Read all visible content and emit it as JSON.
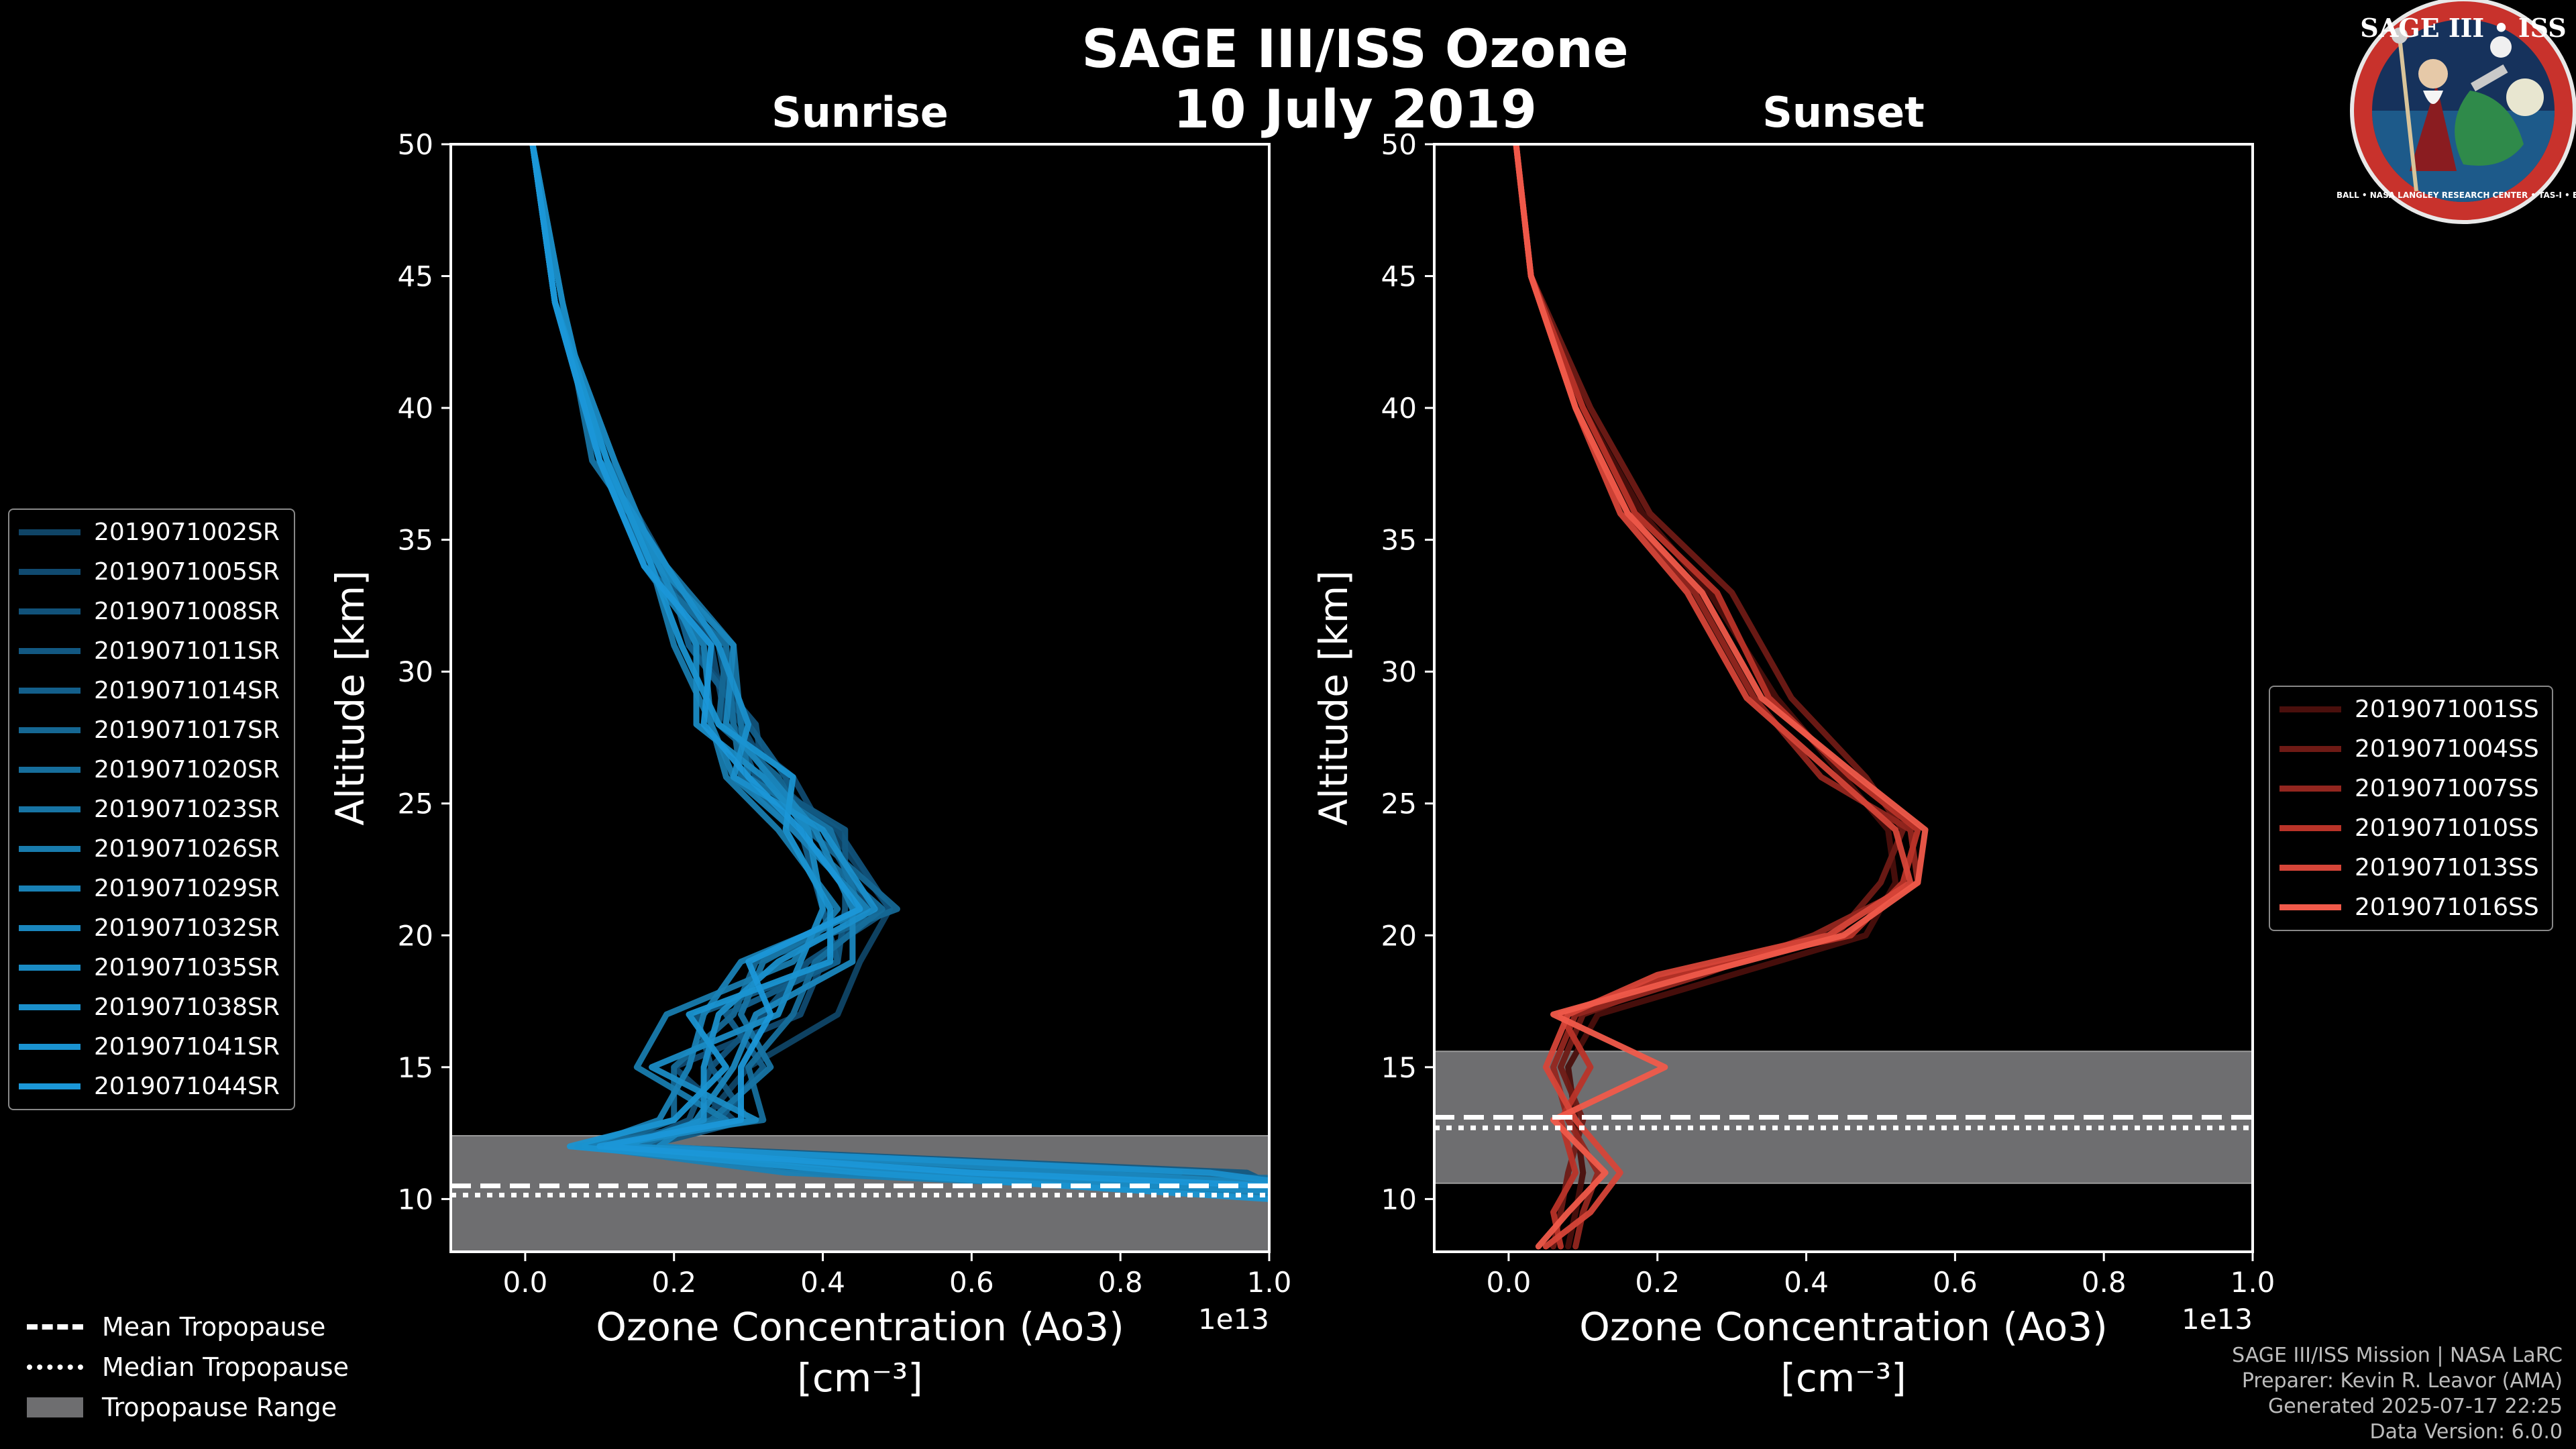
{
  "title": {
    "line1": "SAGE III/ISS Ozone",
    "line2": "10 July 2019"
  },
  "logo": {
    "text": "SAGE III • ISS",
    "ring_text": "BALL • NASA LANGLEY RESEARCH CENTER • TAS-I • ESA"
  },
  "footer": {
    "line1": "SAGE III/ISS Mission | NASA LaRC",
    "line2": "Preparer: Kevin R. Leavor (AMA)",
    "line3": "Generated 2025-07-17 22:25",
    "line4": "Data Version: 6.0.0"
  },
  "bottom_legend": {
    "mean": "Mean Tropopause",
    "median": "Median Tropopause",
    "range": "Tropopause Range"
  },
  "colors": {
    "sunrise": "#1a8fd0",
    "sunset": "#f05a4a",
    "range": "#6e6e70"
  },
  "chart_data": [
    {
      "type": "line",
      "title": "Sunrise",
      "xlabel": "Ozone Concentration (Ao3)",
      "xunit": "[cm⁻³]",
      "x_offset_label": "1e13",
      "ylabel": "Altitude [km]",
      "xlim": [
        -0.1,
        1.0
      ],
      "ylim": [
        8,
        50
      ],
      "xticks": [
        0.0,
        0.2,
        0.4,
        0.6,
        0.8,
        1.0
      ],
      "xtick_labels": [
        "0.0",
        "0.2",
        "0.4",
        "0.6",
        "0.8",
        "1.0"
      ],
      "yticks": [
        10,
        15,
        20,
        25,
        30,
        35,
        40,
        45,
        50
      ],
      "tropopause_mean": 10.5,
      "tropopause_median": 10.15,
      "tropopause_range": [
        8,
        12.4
      ],
      "series": [
        {
          "name": "2019071002SR",
          "color": "#0f4466",
          "x": [
            0.01,
            0.04,
            0.1,
            0.18,
            0.23,
            0.29,
            0.33,
            0.41,
            0.49,
            0.45,
            0.42,
            0.3,
            0.24,
            0.12,
            0.48,
            1.0
          ],
          "y": [
            50,
            44,
            38,
            34,
            31,
            28,
            26,
            24,
            21,
            19,
            17,
            15,
            13,
            12,
            11,
            10.5
          ]
        },
        {
          "name": "2019071005SR",
          "color": "#104a70",
          "x": [
            0.01,
            0.04,
            0.1,
            0.17,
            0.25,
            0.27,
            0.36,
            0.4,
            0.46,
            0.4,
            0.37,
            0.2,
            0.28,
            0.1,
            0.61,
            1.0
          ],
          "y": [
            50,
            44,
            38,
            34,
            31,
            28,
            26,
            24,
            21,
            19,
            17,
            15,
            13,
            12,
            11,
            10.2
          ]
        },
        {
          "name": "2019071008SR",
          "color": "#11527a",
          "x": [
            0.01,
            0.04,
            0.11,
            0.19,
            0.22,
            0.31,
            0.32,
            0.42,
            0.49,
            0.38,
            0.32,
            0.25,
            0.22,
            0.14,
            0.83,
            0.9
          ],
          "y": [
            50,
            44,
            38,
            34,
            31,
            28,
            26,
            24,
            21,
            19,
            17,
            15,
            13,
            12,
            11,
            10.7
          ]
        },
        {
          "name": "2019071011SR",
          "color": "#125882",
          "x": [
            0.01,
            0.04,
            0.1,
            0.18,
            0.26,
            0.28,
            0.31,
            0.43,
            0.43,
            0.42,
            0.23,
            0.25,
            0.3,
            0.16,
            0.97,
            1.0
          ],
          "y": [
            50,
            44,
            38,
            34,
            31,
            28,
            26,
            24,
            21,
            19,
            17,
            15,
            13,
            12,
            11,
            10.6
          ]
        },
        {
          "name": "2019071014SR",
          "color": "#135f8b",
          "x": [
            0.01,
            0.05,
            0.1,
            0.19,
            0.22,
            0.3,
            0.35,
            0.37,
            0.4,
            0.42,
            0.27,
            0.32,
            0.26,
            0.09,
            0.7,
            1.0
          ],
          "y": [
            50,
            44,
            38,
            34,
            31,
            28,
            26,
            24,
            21,
            19,
            17,
            15,
            13,
            12,
            11,
            10.3
          ]
        },
        {
          "name": "2019071017SR",
          "color": "#156793",
          "x": [
            0.01,
            0.04,
            0.12,
            0.16,
            0.27,
            0.26,
            0.34,
            0.38,
            0.5,
            0.31,
            0.28,
            0.2,
            0.2,
            0.1,
            0.4,
            1.0
          ],
          "y": [
            50,
            44,
            38,
            34,
            31,
            28,
            26,
            24,
            21,
            19,
            17,
            15,
            13,
            12,
            11,
            10.4
          ]
        },
        {
          "name": "2019071020SR",
          "color": "#166e9c",
          "x": [
            0.01,
            0.04,
            0.1,
            0.16,
            0.27,
            0.28,
            0.29,
            0.36,
            0.48,
            0.39,
            0.36,
            0.3,
            0.32,
            0.07,
            0.55,
            1.0
          ],
          "y": [
            50,
            44,
            38,
            34,
            31,
            28,
            26,
            24,
            21,
            19,
            17,
            15,
            13,
            12,
            11,
            10.8
          ]
        },
        {
          "name": "2019071023SR",
          "color": "#1774a4",
          "x": [
            0.01,
            0.05,
            0.09,
            0.19,
            0.28,
            0.29,
            0.3,
            0.41,
            0.45,
            0.32,
            0.29,
            0.33,
            0.25,
            0.15,
            0.66,
            1.0
          ],
          "y": [
            50,
            44,
            38,
            34,
            31,
            28,
            26,
            24,
            21,
            19,
            17,
            15,
            13,
            12,
            11,
            10.1
          ]
        },
        {
          "name": "2019071026SR",
          "color": "#187bad",
          "x": [
            0.01,
            0.04,
            0.11,
            0.17,
            0.2,
            0.25,
            0.27,
            0.34,
            0.42,
            0.36,
            0.19,
            0.15,
            0.27,
            0.12,
            0.88,
            0.8
          ],
          "y": [
            50,
            44,
            38,
            34,
            31,
            28,
            26,
            24,
            21,
            19,
            17,
            15,
            13,
            12,
            11,
            10.9
          ]
        },
        {
          "name": "2019071029SR",
          "color": "#1981b5",
          "x": [
            0.01,
            0.04,
            0.1,
            0.16,
            0.24,
            0.25,
            0.28,
            0.36,
            0.46,
            0.29,
            0.24,
            0.22,
            0.18,
            0.08,
            0.35,
            1.0
          ],
          "y": [
            50,
            44,
            38,
            34,
            31,
            28,
            26,
            24,
            21,
            19,
            17,
            15,
            13,
            12,
            11,
            10.2
          ]
        },
        {
          "name": "2019071032SR",
          "color": "#1a86bd",
          "x": [
            0.01,
            0.04,
            0.12,
            0.18,
            0.28,
            0.27,
            0.33,
            0.39,
            0.44,
            0.44,
            0.31,
            0.28,
            0.23,
            0.18,
            0.75,
            1.0
          ],
          "y": [
            50,
            44,
            38,
            34,
            31,
            28,
            26,
            24,
            21,
            19,
            17,
            15,
            13,
            12,
            11,
            10.6
          ]
        },
        {
          "name": "2019071035SR",
          "color": "#1a8bc4",
          "x": [
            0.01,
            0.05,
            0.1,
            0.18,
            0.23,
            0.23,
            0.32,
            0.38,
            0.4,
            0.37,
            0.34,
            0.17,
            0.31,
            0.11,
            0.52,
            1.0
          ],
          "y": [
            50,
            44,
            38,
            34,
            31,
            28,
            26,
            24,
            21,
            19,
            17,
            15,
            13,
            12,
            11,
            10.3
          ]
        },
        {
          "name": "2019071038SR",
          "color": "#1a8fcb",
          "x": [
            0.01,
            0.04,
            0.1,
            0.19,
            0.26,
            0.3,
            0.28,
            0.4,
            0.47,
            0.34,
            0.26,
            0.24,
            0.24,
            0.13,
            0.92,
            1.0
          ],
          "y": [
            50,
            44,
            38,
            34,
            31,
            28,
            26,
            24,
            21,
            19,
            17,
            15,
            13,
            12,
            11,
            10.7
          ]
        },
        {
          "name": "2019071041SR",
          "color": "#1a93d1",
          "x": [
            0.01,
            0.04,
            0.11,
            0.17,
            0.21,
            0.26,
            0.36,
            0.35,
            0.41,
            0.41,
            0.22,
            0.27,
            0.2,
            0.06,
            0.45,
            1.0
          ],
          "y": [
            50,
            44,
            38,
            34,
            31,
            28,
            26,
            24,
            21,
            19,
            17,
            15,
            13,
            12,
            11,
            10.0
          ]
        },
        {
          "name": "2019071044SR",
          "color": "#1b97d8",
          "x": [
            0.01,
            0.04,
            0.1,
            0.16,
            0.25,
            0.24,
            0.3,
            0.37,
            0.45,
            0.3,
            0.33,
            0.29,
            0.29,
            0.1,
            0.6,
            1.0
          ],
          "y": [
            50,
            44,
            38,
            34,
            31,
            28,
            26,
            24,
            21,
            19,
            17,
            15,
            13,
            12,
            11,
            10.5
          ]
        }
      ]
    },
    {
      "type": "line",
      "title": "Sunset",
      "xlabel": "Ozone Concentration (Ao3)",
      "xunit": "[cm⁻³]",
      "x_offset_label": "1e13",
      "ylabel": "Altitude [km]",
      "xlim": [
        -0.1,
        1.0
      ],
      "ylim": [
        8,
        50
      ],
      "xticks": [
        0.0,
        0.2,
        0.4,
        0.6,
        0.8,
        1.0
      ],
      "xtick_labels": [
        "0.0",
        "0.2",
        "0.4",
        "0.6",
        "0.8",
        "1.0"
      ],
      "yticks": [
        10,
        15,
        20,
        25,
        30,
        35,
        40,
        45,
        50
      ],
      "tropopause_mean": 13.1,
      "tropopause_median": 12.7,
      "tropopause_range": [
        10.6,
        15.6
      ],
      "series": [
        {
          "name": "2019071001SS",
          "color": "#4a0f0c",
          "x": [
            0.01,
            0.03,
            0.1,
            0.18,
            0.27,
            0.36,
            0.45,
            0.51,
            0.52,
            0.48,
            0.3,
            0.12,
            0.08,
            0.09,
            0.1,
            0.09,
            0.08
          ],
          "y": [
            50,
            45,
            40,
            36,
            33,
            29,
            26,
            24,
            22,
            20,
            18.5,
            17,
            15,
            13,
            11,
            9.5,
            8.2
          ]
        },
        {
          "name": "2019071004SS",
          "color": "#6e1a15",
          "x": [
            0.01,
            0.03,
            0.11,
            0.19,
            0.3,
            0.38,
            0.48,
            0.53,
            0.5,
            0.44,
            0.24,
            0.1,
            0.07,
            0.1,
            0.08,
            0.07,
            0.06
          ],
          "y": [
            50,
            45,
            40,
            36,
            33,
            29,
            26,
            24,
            22,
            20,
            18.5,
            17,
            15,
            13,
            11,
            9.5,
            8.2
          ]
        },
        {
          "name": "2019071007SS",
          "color": "#93261f",
          "x": [
            0.01,
            0.03,
            0.09,
            0.16,
            0.25,
            0.33,
            0.42,
            0.54,
            0.55,
            0.41,
            0.26,
            0.09,
            0.06,
            0.08,
            0.12,
            0.1,
            0.09
          ],
          "y": [
            50,
            45,
            40,
            36,
            33,
            29,
            26,
            24,
            22,
            20,
            18.5,
            17,
            15,
            13,
            11,
            9.5,
            8.2
          ]
        },
        {
          "name": "2019071010SS",
          "color": "#b93328",
          "x": [
            0.01,
            0.03,
            0.1,
            0.17,
            0.28,
            0.35,
            0.46,
            0.55,
            0.53,
            0.46,
            0.22,
            0.07,
            0.11,
            0.07,
            0.09,
            0.06,
            0.07
          ],
          "y": [
            50,
            45,
            40,
            36,
            33,
            29,
            26,
            24,
            22,
            20,
            18.5,
            17,
            15,
            13,
            11,
            9.5,
            8.2
          ]
        },
        {
          "name": "2019071013SS",
          "color": "#d64538",
          "x": [
            0.01,
            0.03,
            0.09,
            0.15,
            0.24,
            0.32,
            0.44,
            0.52,
            0.54,
            0.43,
            0.2,
            0.08,
            0.05,
            0.09,
            0.15,
            0.11,
            0.05
          ],
          "y": [
            50,
            45,
            40,
            36,
            33,
            29,
            26,
            24,
            22,
            20,
            18.5,
            17,
            15,
            13,
            11,
            9.5,
            8.2
          ]
        },
        {
          "name": "2019071016SS",
          "color": "#f05a4a",
          "x": [
            0.01,
            0.03,
            0.09,
            0.16,
            0.26,
            0.34,
            0.47,
            0.56,
            0.55,
            0.45,
            0.25,
            0.06,
            0.21,
            0.06,
            0.13,
            0.08,
            0.04
          ],
          "y": [
            50,
            45,
            40,
            36,
            33,
            29,
            26,
            24,
            22,
            20,
            18.5,
            17,
            15,
            13,
            11,
            9.5,
            8.2
          ]
        }
      ]
    }
  ]
}
